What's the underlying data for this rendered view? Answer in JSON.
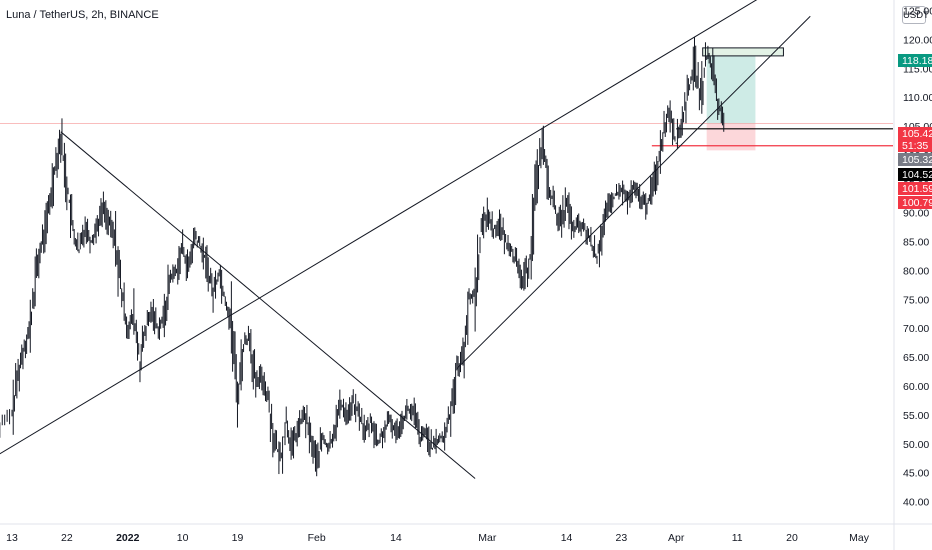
{
  "header": {
    "symbol_title": "Luna / TetherUS, 2h, BINANCE",
    "currency": "USDT"
  },
  "chart_data": {
    "type": "candlestick",
    "title": "Luna / TetherUS, 2h, BINANCE",
    "y_axis_unit": "USDT",
    "y_ticks": [
      "125.00",
      "120.00",
      "115.00",
      "110.00",
      "105.00",
      "100.00",
      "95.00",
      "90.00",
      "85.00",
      "80.00",
      "75.00",
      "70.00",
      "65.00",
      "60.00",
      "55.00",
      "50.00",
      "45.00",
      "40.00"
    ],
    "x_ticks": [
      "13",
      "22",
      "2022",
      "10",
      "19",
      "Feb",
      "14",
      "Mar",
      "14",
      "23",
      "Apr",
      "11",
      "20",
      "May"
    ],
    "ylim": [
      37.5,
      126.5
    ],
    "price_path": [
      {
        "x": "Dec 9",
        "y": 63
      },
      {
        "x": "Dec 11",
        "y": 53
      },
      {
        "x": "Dec 13",
        "y": 55
      },
      {
        "x": "Dec 14",
        "y": 62
      },
      {
        "x": "Dec 15",
        "y": 67
      },
      {
        "x": "Dec 16",
        "y": 70
      },
      {
        "x": "Dec 17",
        "y": 80
      },
      {
        "x": "Dec 18",
        "y": 85
      },
      {
        "x": "Dec 19",
        "y": 90
      },
      {
        "x": "Dec 20",
        "y": 98
      },
      {
        "x": "Dec 21",
        "y": 103
      },
      {
        "x": "Dec 22",
        "y": 95
      },
      {
        "x": "Dec 23",
        "y": 87
      },
      {
        "x": "Dec 24",
        "y": 83
      },
      {
        "x": "Dec 25",
        "y": 88
      },
      {
        "x": "Dec 26",
        "y": 85
      },
      {
        "x": "Dec 27",
        "y": 88
      },
      {
        "x": "Dec 28",
        "y": 91
      },
      {
        "x": "Dec 29",
        "y": 88
      },
      {
        "x": "Dec 30",
        "y": 85
      },
      {
        "x": "Dec 31",
        "y": 76
      },
      {
        "x": "Jan 1",
        "y": 70
      },
      {
        "x": "Jan 2",
        "y": 72
      },
      {
        "x": "Jan 3",
        "y": 64
      },
      {
        "x": "Jan 4",
        "y": 70
      },
      {
        "x": "Jan 5",
        "y": 73
      },
      {
        "x": "Jan 6",
        "y": 70
      },
      {
        "x": "Jan 7",
        "y": 72
      },
      {
        "x": "Jan 8",
        "y": 79
      },
      {
        "x": "Jan 9",
        "y": 80
      },
      {
        "x": "Jan 10",
        "y": 84
      },
      {
        "x": "Jan 11",
        "y": 80
      },
      {
        "x": "Jan 12",
        "y": 86
      },
      {
        "x": "Jan 13",
        "y": 84
      },
      {
        "x": "Jan 14",
        "y": 81
      },
      {
        "x": "Jan 15",
        "y": 76
      },
      {
        "x": "Jan 16",
        "y": 80
      },
      {
        "x": "Jan 17",
        "y": 75
      },
      {
        "x": "Jan 18",
        "y": 71
      },
      {
        "x": "Jan 19",
        "y": 58
      },
      {
        "x": "Jan 20",
        "y": 67
      },
      {
        "x": "Jan 21",
        "y": 69
      },
      {
        "x": "Jan 22",
        "y": 60
      },
      {
        "x": "Jan 23",
        "y": 62
      },
      {
        "x": "Jan 24",
        "y": 58
      },
      {
        "x": "Jan 25",
        "y": 51
      },
      {
        "x": "Jan 26",
        "y": 47
      },
      {
        "x": "Jan 27",
        "y": 54
      },
      {
        "x": "Jan 28",
        "y": 49
      },
      {
        "x": "Jan 29",
        "y": 53
      },
      {
        "x": "Jan 30",
        "y": 55
      },
      {
        "x": "Jan 31",
        "y": 51
      },
      {
        "x": "Feb 1",
        "y": 47
      },
      {
        "x": "Feb 2",
        "y": 51
      },
      {
        "x": "Feb 3",
        "y": 49
      },
      {
        "x": "Feb 4",
        "y": 53
      },
      {
        "x": "Feb 5",
        "y": 57
      },
      {
        "x": "Feb 6",
        "y": 55
      },
      {
        "x": "Feb 7",
        "y": 57
      },
      {
        "x": "Feb 8",
        "y": 55
      },
      {
        "x": "Feb 9",
        "y": 52
      },
      {
        "x": "Feb 10",
        "y": 54
      },
      {
        "x": "Feb 11",
        "y": 50
      },
      {
        "x": "Feb 12",
        "y": 52
      },
      {
        "x": "Feb 13",
        "y": 54
      },
      {
        "x": "Feb 14",
        "y": 52
      },
      {
        "x": "Feb 15",
        "y": 54
      },
      {
        "x": "Feb 16",
        "y": 56
      },
      {
        "x": "Feb 17",
        "y": 55
      },
      {
        "x": "Feb 18",
        "y": 51
      },
      {
        "x": "Feb 19",
        "y": 52
      },
      {
        "x": "Feb 20",
        "y": 49
      },
      {
        "x": "Feb 21",
        "y": 51
      },
      {
        "x": "Feb 22",
        "y": 51
      },
      {
        "x": "Feb 23",
        "y": 56
      },
      {
        "x": "Feb 24",
        "y": 63
      },
      {
        "x": "Feb 25",
        "y": 65
      },
      {
        "x": "Feb 26",
        "y": 75
      },
      {
        "x": "Feb 27",
        "y": 76
      },
      {
        "x": "Feb 28",
        "y": 87
      },
      {
        "x": "Mar 1",
        "y": 90
      },
      {
        "x": "Mar 2",
        "y": 87
      },
      {
        "x": "Mar 3",
        "y": 88
      },
      {
        "x": "Mar 4",
        "y": 85
      },
      {
        "x": "Mar 5",
        "y": 84
      },
      {
        "x": "Mar 6",
        "y": 80
      },
      {
        "x": "Mar 7",
        "y": 78
      },
      {
        "x": "Mar 8",
        "y": 82
      },
      {
        "x": "Mar 9",
        "y": 95
      },
      {
        "x": "Mar 10",
        "y": 102
      },
      {
        "x": "Mar 11",
        "y": 95
      },
      {
        "x": "Mar 12",
        "y": 91
      },
      {
        "x": "Mar 13",
        "y": 88
      },
      {
        "x": "Mar 14",
        "y": 92
      },
      {
        "x": "Mar 15",
        "y": 87
      },
      {
        "x": "Mar 16",
        "y": 88
      },
      {
        "x": "Mar 17",
        "y": 87
      },
      {
        "x": "Mar 18",
        "y": 85
      },
      {
        "x": "Mar 19",
        "y": 82
      },
      {
        "x": "Mar 20",
        "y": 88
      },
      {
        "x": "Mar 21",
        "y": 91
      },
      {
        "x": "Mar 22",
        "y": 93
      },
      {
        "x": "Mar 23",
        "y": 94
      },
      {
        "x": "Mar 24",
        "y": 92
      },
      {
        "x": "Mar 25",
        "y": 94
      },
      {
        "x": "Mar 26",
        "y": 93
      },
      {
        "x": "Mar 27",
        "y": 91
      },
      {
        "x": "Mar 28",
        "y": 94
      },
      {
        "x": "Mar 29",
        "y": 98
      },
      {
        "x": "Mar 30",
        "y": 105
      },
      {
        "x": "Mar 31",
        "y": 108
      },
      {
        "x": "Apr 1",
        "y": 102
      },
      {
        "x": "Apr 2",
        "y": 106
      },
      {
        "x": "Apr 3",
        "y": 111
      },
      {
        "x": "Apr 4",
        "y": 116
      },
      {
        "x": "Apr 5",
        "y": 110
      },
      {
        "x": "Apr 6",
        "y": 117
      },
      {
        "x": "Apr 7",
        "y": 115
      },
      {
        "x": "Apr 8",
        "y": 108
      },
      {
        "x": "Apr 9",
        "y": 106
      }
    ],
    "trendlines": [
      {
        "from": {
          "x": "Dec 9",
          "y": 47
        },
        "to": {
          "x": "Apr 16",
          "y": 128
        }
      },
      {
        "from": {
          "x": "Feb 24",
          "y": 63
        },
        "to": {
          "x": "Apr 23",
          "y": 124
        }
      },
      {
        "from": {
          "x": "Dec 21",
          "y": 104
        },
        "to": {
          "x": "Feb 27",
          "y": 44
        }
      }
    ],
    "horizontal_levels": [
      {
        "y": 104.52,
        "color": "#000000"
      },
      {
        "y": 101.59,
        "color": "#f23645"
      },
      {
        "y": 105.42,
        "color": "#f7a7a7"
      }
    ],
    "position": {
      "type": "long",
      "entry": 105.42,
      "target": 118.18,
      "stop": 100.79,
      "from": "Apr 6",
      "to": "Apr 14"
    },
    "price_labels": [
      {
        "text": "118.18",
        "color": "#089981"
      },
      {
        "text": "105.42",
        "color": "#f23645"
      },
      {
        "text": "51:35",
        "color": "#f23645"
      },
      {
        "text": "105.32",
        "color": "#787b86"
      },
      {
        "text": "104.52",
        "color": "#000000"
      },
      {
        "text": "101.59",
        "color": "#f23645"
      },
      {
        "text": "100.79",
        "color": "#f23645"
      }
    ],
    "grid": false,
    "colors": {
      "candle": "#131722",
      "target_zone": "#089981",
      "stop_zone": "#f23645"
    }
  }
}
